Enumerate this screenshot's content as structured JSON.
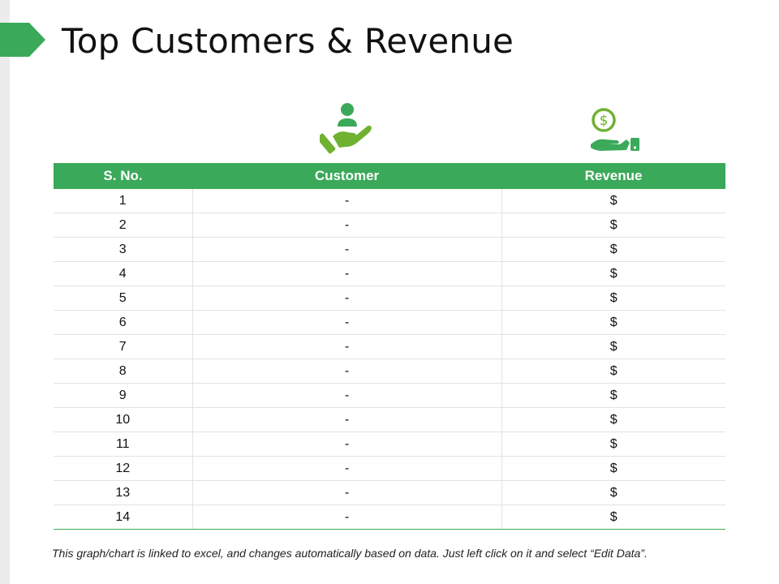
{
  "title": "Top Customers & Revenue",
  "colors": {
    "accent": "#3ba95a",
    "icon_green": "#6fb232"
  },
  "icons": {
    "customer": "customer-hand-icon",
    "revenue": "money-hand-icon"
  },
  "table": {
    "headers": [
      "S. No.",
      "Customer",
      "Revenue"
    ],
    "rows": [
      [
        "1",
        "-",
        "$"
      ],
      [
        "2",
        "-",
        "$"
      ],
      [
        "3",
        "-",
        "$"
      ],
      [
        "4",
        "-",
        "$"
      ],
      [
        "5",
        "-",
        "$"
      ],
      [
        "6",
        "-",
        "$"
      ],
      [
        "7",
        "-",
        "$"
      ],
      [
        "8",
        "-",
        "$"
      ],
      [
        "9",
        "-",
        "$"
      ],
      [
        "10",
        "-",
        "$"
      ],
      [
        "11",
        "-",
        "$"
      ],
      [
        "12",
        "-",
        "$"
      ],
      [
        "13",
        "-",
        "$"
      ],
      [
        "14",
        "-",
        "$"
      ]
    ]
  },
  "footnote": "This graph/chart is linked to excel, and changes automatically based on data. Just left click on it and select “Edit Data”."
}
